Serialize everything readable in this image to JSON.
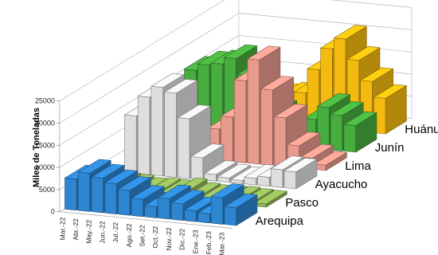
{
  "chart_data": {
    "type": "bar",
    "subtype": "3d-column",
    "ylabel": "Miles de Toneladas",
    "yticks": [
      0,
      5000,
      10000,
      15000,
      20000,
      25000
    ],
    "ylim": [
      0,
      25000
    ],
    "grid": true,
    "categories": [
      "Mar.-22",
      "Abr.-22",
      "May.-22",
      "Jun.-22",
      "Jul.-22",
      "Ago.-22",
      "Set.-22",
      "Oct.-22",
      "Nov.-22",
      "Dic.-22",
      "Ene.-23",
      "Feb.-23",
      "Mar.-23"
    ],
    "series": [
      {
        "name": "Arequipa",
        "color": "#2e86d1",
        "values": [
          7000,
          8600,
          7800,
          6800,
          5600,
          3900,
          2500,
          4600,
          3700,
          2400,
          2000,
          6000,
          4000
        ]
      },
      {
        "name": "Pasco",
        "color": "#92b75a",
        "values": [
          1500,
          1600,
          1400,
          1000,
          1200,
          1100,
          1700,
          1000,
          800,
          900,
          1000,
          800,
          700
        ]
      },
      {
        "name": "Ayacucho",
        "color": "#dedede",
        "values": [
          13000,
          17500,
          20000,
          19000,
          13500,
          5000,
          1500,
          1000,
          700,
          1500,
          2000,
          4000,
          3800
        ]
      },
      {
        "name": "Lima",
        "color": "#e89a8c",
        "values": [
          500,
          800,
          2000,
          4500,
          7000,
          10000,
          18500,
          23500,
          17000,
          11000,
          5000,
          2500,
          1200
        ]
      },
      {
        "name": "Junín",
        "color": "#47ad3e",
        "values": [
          15000,
          16500,
          17000,
          18500,
          15000,
          11000,
          7000,
          3500,
          3000,
          6500,
          9500,
          8000,
          6000
        ]
      },
      {
        "name": "Huánuco",
        "color": "#f4ba0f",
        "values": [
          2500,
          4000,
          6500,
          7000,
          6000,
          6500,
          7500,
          13000,
          18000,
          20500,
          16000,
          11500,
          8000
        ]
      }
    ]
  }
}
